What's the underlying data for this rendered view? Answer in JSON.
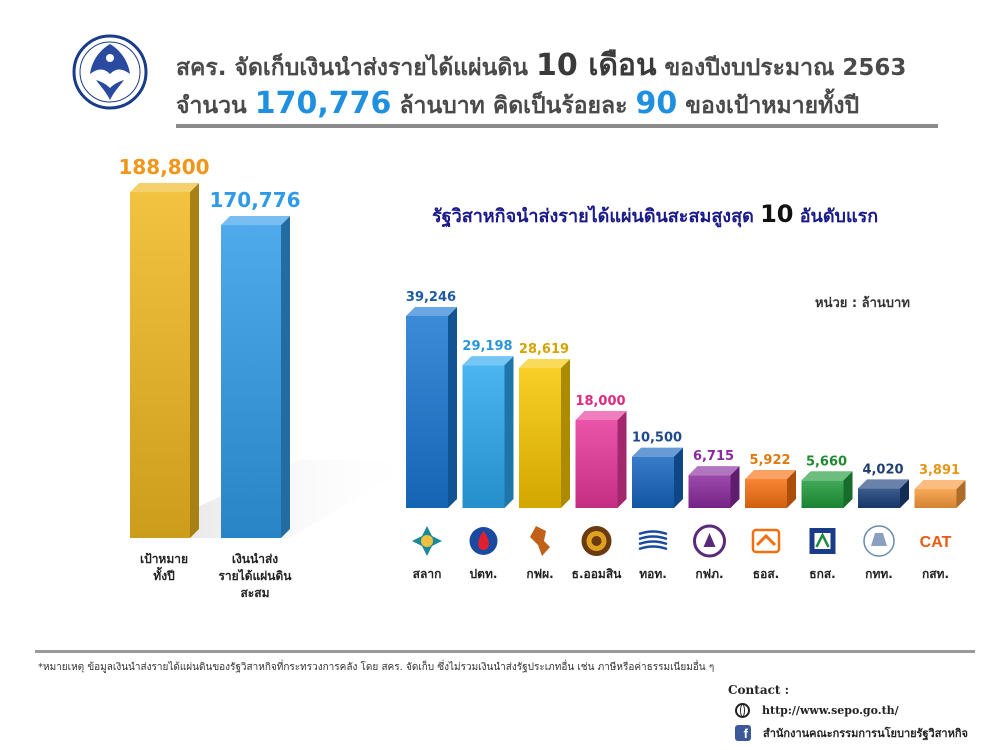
{
  "header": {
    "line1_prefix": "สคร. จัดเก็บเงินนำส่งรายได้แผ่นดิน",
    "line1_number": "10 เดือน",
    "line1_suffix": "ของปีงบประมาณ 2563",
    "line2_prefix": "จำนวน",
    "line2_amount": "170,776",
    "line2_mid": "ล้านบาท คิดเป็นร้อยละ",
    "line2_percent": "90",
    "line2_suffix": "ของเป้าหมายทั้งปี"
  },
  "chart_data": [
    {
      "type": "bar",
      "categories": [
        "เป้าหมาย ทั้งปี",
        "เงินนำส่ง รายได้แผ่นดิน สะสม"
      ],
      "category_lines": [
        [
          "เป้าหมาย",
          "ทั้งปี"
        ],
        [
          "เงินนำส่ง",
          "รายได้แผ่นดิน",
          "สะสม"
        ]
      ],
      "values": [
        188800,
        170776
      ],
      "value_labels": [
        "188,800",
        "170,776"
      ],
      "colors": [
        "#f0b820",
        "#2f9be8"
      ],
      "label_colors": [
        "#f0961a",
        "#2f9be8"
      ],
      "title": "",
      "xlabel": "",
      "ylabel": ""
    },
    {
      "type": "bar",
      "title": "รัฐวิสาหกิจนำส่งรายได้แผ่นดินสะสมสูงสุด",
      "title_number": "10",
      "title_suffix": "อันดับแรก",
      "unit": "หน่วย : ล้านบาท",
      "categories": [
        "สลาก",
        "ปตท.",
        "กฟผ.",
        "ธ.ออมสิน",
        "ทอท.",
        "กฟภ.",
        "ธอส.",
        "ธกส.",
        "กทท.",
        "กสท."
      ],
      "values": [
        39246,
        29198,
        28619,
        18000,
        10500,
        6715,
        5922,
        5660,
        4020,
        3891
      ],
      "value_labels": [
        "39,246",
        "29,198",
        "28,619",
        "18,000",
        "10,500",
        "6,715",
        "5,922",
        "5,660",
        "4,020",
        "3,891"
      ],
      "colors": [
        "#1976d2",
        "#2aa8ee",
        "#f7c600",
        "#e8379a",
        "#1565c0",
        "#8a2a9c",
        "#f57010",
        "#1f9a3a",
        "#1a3f7a",
        "#f79a3a"
      ],
      "label_colors": [
        "#1e5aa0",
        "#2a96d8",
        "#d4a400",
        "#e0287e",
        "#1e4a8a",
        "#8a2a9c",
        "#e07a10",
        "#1f8a30",
        "#1e3f70",
        "#e8961a"
      ],
      "icons": [
        "lottery-logo-icon",
        "ptt-logo-icon",
        "egat-map-logo-icon",
        "gsb-seal-icon",
        "aot-logo-icon",
        "pea-seal-icon",
        "ghb-logo-icon",
        "baac-logo-icon",
        "port-authority-logo-icon",
        "cat-logo-icon"
      ],
      "cat_logo_text": "CAT"
    }
  ],
  "footer": {
    "note": "*หมายเหตุ ข้อมูลเงินนำส่งรายได้แผ่นดินของรัฐวิสาหกิจที่กระทรวงการคลัง โดย สคร. จัดเก็บ ซึ่งไม่รวมเงินนำส่งรัฐประเภทอื่น เช่น ภาษีหรือค่าธรรมเนียมอื่น ๆ",
    "contact_label": "Contact :",
    "website": "http://www.sepo.go.th/",
    "facebook": "สำนักงานคณะกรรมการนโยบายรัฐวิสาหกิจ"
  }
}
